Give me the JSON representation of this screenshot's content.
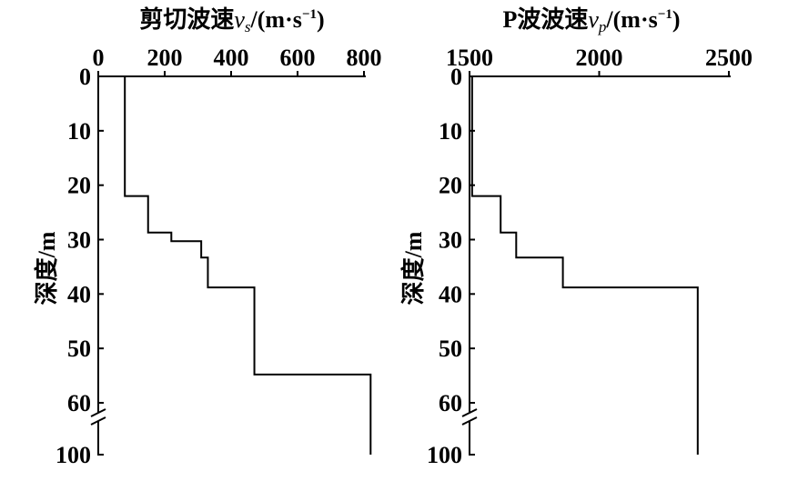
{
  "chart_data": [
    {
      "type": "line",
      "step": true,
      "title": {
        "label": "剪切波速",
        "symbol": "v",
        "subscript": "s",
        "unit_open": "/(m·s",
        "unit_power": "−1",
        "unit_close": ")"
      },
      "ylabel": "深度/m",
      "xlim": [
        0,
        800
      ],
      "xticks": [
        0,
        200,
        400,
        600,
        800
      ],
      "xtick_labels": [
        "0",
        "200",
        "400",
        "600",
        "800"
      ],
      "yticks": [
        0,
        10,
        20,
        30,
        40,
        50,
        60,
        100
      ],
      "ytick_labels": [
        "0",
        "10",
        "20",
        "30",
        "40",
        "50",
        "60",
        "100"
      ],
      "axis_break_between": [
        60,
        100
      ],
      "x_axis_position": "top",
      "y_inverted": true,
      "profile": [
        {
          "velocity": 80,
          "depth_from": 0,
          "depth_to": 22
        },
        {
          "velocity": 150,
          "depth_from": 22,
          "depth_to": 28.7
        },
        {
          "velocity": 220,
          "depth_from": 28.7,
          "depth_to": 30.3
        },
        {
          "velocity": 310,
          "depth_from": 30.3,
          "depth_to": 33.3
        },
        {
          "velocity": 330,
          "depth_from": 33.3,
          "depth_to": 38.8
        },
        {
          "velocity": 470,
          "depth_from": 38.8,
          "depth_to": 54.8
        },
        {
          "velocity": 820,
          "depth_from": 54.8,
          "depth_to": 100
        }
      ]
    },
    {
      "type": "line",
      "step": true,
      "title": {
        "label": "P波波速",
        "symbol": "v",
        "subscript": "p",
        "unit_open": "/(m·s",
        "unit_power": "−1",
        "unit_close": ")"
      },
      "ylabel": "深度/m",
      "xlim": [
        1500,
        2500
      ],
      "xticks": [
        1500,
        2000,
        2500
      ],
      "xtick_labels": [
        "1500",
        "2000",
        "2500"
      ],
      "yticks": [
        0,
        10,
        20,
        30,
        40,
        50,
        60,
        100
      ],
      "ytick_labels": [
        "0",
        "10",
        "20",
        "30",
        "40",
        "50",
        "60",
        "100"
      ],
      "axis_break_between": [
        60,
        100
      ],
      "x_axis_position": "top",
      "y_inverted": true,
      "profile": [
        {
          "velocity": 1510,
          "depth_from": 0,
          "depth_to": 22
        },
        {
          "velocity": 1620,
          "depth_from": 22,
          "depth_to": 28.7
        },
        {
          "velocity": 1680,
          "depth_from": 28.7,
          "depth_to": 33.3
        },
        {
          "velocity": 1860,
          "depth_from": 33.3,
          "depth_to": 38.8
        },
        {
          "velocity": 2380,
          "depth_from": 38.8,
          "depth_to": 100
        }
      ]
    }
  ]
}
